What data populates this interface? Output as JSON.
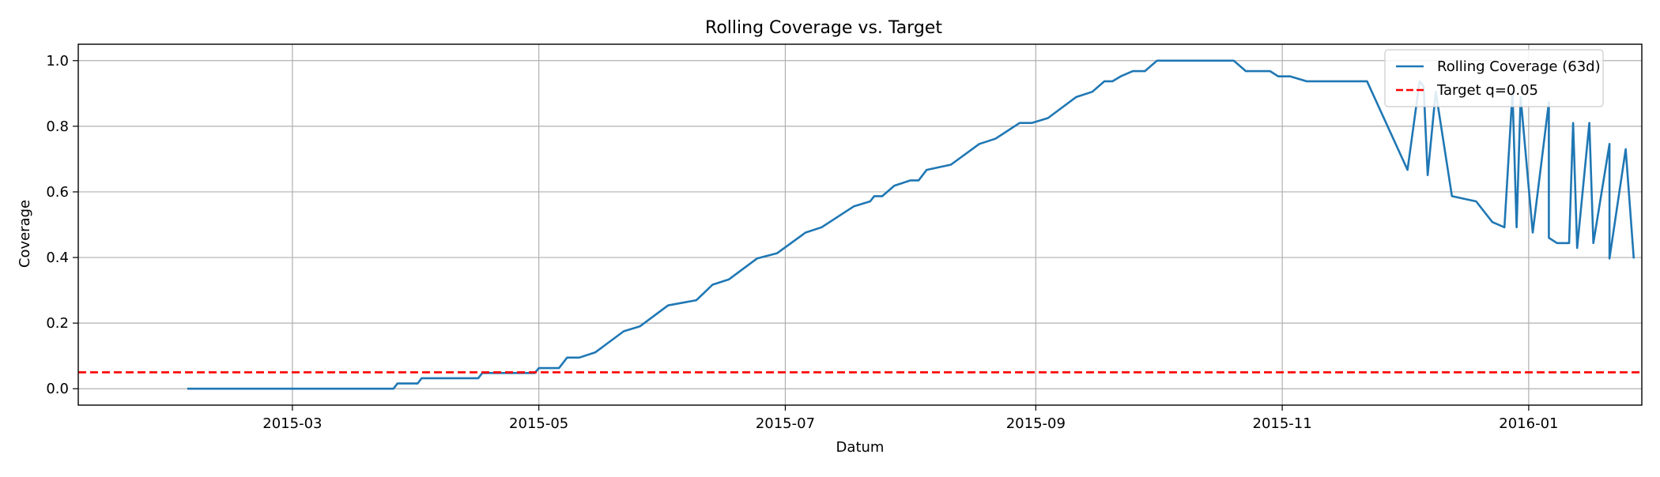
{
  "chart_data": {
    "type": "line",
    "title": "Rolling Coverage vs. Target",
    "xlabel": "Datum",
    "ylabel": "Coverage",
    "xlim": [
      "2015-01-07",
      "2016-01-29"
    ],
    "ylim": [
      -0.05,
      1.05
    ],
    "grid": true,
    "legend_position": "top-right",
    "x_ticks": [
      "2015-03",
      "2015-05",
      "2015-07",
      "2015-09",
      "2015-11",
      "2016-01"
    ],
    "y_ticks": [
      "0.0",
      "0.2",
      "0.4",
      "0.6",
      "0.8",
      "1.0"
    ],
    "series": [
      {
        "name": "Rolling Coverage (63d)",
        "color": "#1f77b4",
        "style": "solid",
        "points": [
          [
            "2015-02-03",
            0.0
          ],
          [
            "2015-03-26",
            0.0
          ],
          [
            "2015-03-27",
            0.016
          ],
          [
            "2015-04-01",
            0.016
          ],
          [
            "2015-04-02",
            0.032
          ],
          [
            "2015-04-16",
            0.032
          ],
          [
            "2015-04-17",
            0.048
          ],
          [
            "2015-04-30",
            0.048
          ],
          [
            "2015-05-01",
            0.063
          ],
          [
            "2015-05-06",
            0.063
          ],
          [
            "2015-05-08",
            0.095
          ],
          [
            "2015-05-11",
            0.095
          ],
          [
            "2015-05-15",
            0.111
          ],
          [
            "2015-05-22",
            0.175
          ],
          [
            "2015-05-26",
            0.19
          ],
          [
            "2015-06-02",
            0.254
          ],
          [
            "2015-06-09",
            0.27
          ],
          [
            "2015-06-13",
            0.317
          ],
          [
            "2015-06-17",
            0.333
          ],
          [
            "2015-06-24",
            0.397
          ],
          [
            "2015-06-29",
            0.413
          ],
          [
            "2015-07-06",
            0.476
          ],
          [
            "2015-07-10",
            0.492
          ],
          [
            "2015-07-18",
            0.556
          ],
          [
            "2015-07-22",
            0.571
          ],
          [
            "2015-07-23",
            0.587
          ],
          [
            "2015-07-25",
            0.587
          ],
          [
            "2015-07-28",
            0.619
          ],
          [
            "2015-08-01",
            0.635
          ],
          [
            "2015-08-03",
            0.635
          ],
          [
            "2015-08-05",
            0.667
          ],
          [
            "2015-08-11",
            0.683
          ],
          [
            "2015-08-18",
            0.746
          ],
          [
            "2015-08-22",
            0.762
          ],
          [
            "2015-08-28",
            0.81
          ],
          [
            "2015-08-31",
            0.81
          ],
          [
            "2015-09-04",
            0.825
          ],
          [
            "2015-09-11",
            0.889
          ],
          [
            "2015-09-15",
            0.905
          ],
          [
            "2015-09-18",
            0.937
          ],
          [
            "2015-09-20",
            0.937
          ],
          [
            "2015-09-22",
            0.952
          ],
          [
            "2015-09-25",
            0.968
          ],
          [
            "2015-09-28",
            0.968
          ],
          [
            "2015-10-01",
            1.0
          ],
          [
            "2015-10-20",
            1.0
          ],
          [
            "2015-10-23",
            0.968
          ],
          [
            "2015-10-29",
            0.968
          ],
          [
            "2015-10-31",
            0.952
          ],
          [
            "2015-11-03",
            0.952
          ],
          [
            "2015-11-07",
            0.937
          ],
          [
            "2015-11-22",
            0.937
          ],
          [
            "2015-12-05",
            0.937
          ],
          [
            "2015-12-06",
            0.921
          ],
          [
            "2015-12-09",
            0.905
          ],
          [
            "2015-12-28",
            0.905
          ],
          [
            "2015-12-30",
            0.889
          ],
          [
            "2016-01-06",
            0.873
          ],
          [
            "2016-01-12",
            0.81
          ],
          [
            "2016-01-16",
            0.81
          ],
          [
            "2016-01-21",
            0.746
          ],
          [
            "2016-01-25",
            0.73
          ],
          [
            "2015-12-02",
            0.667
          ],
          [
            "2015-12-07",
            0.651
          ],
          [
            "2015-12-13",
            0.587
          ],
          [
            "2015-12-19",
            0.571
          ],
          [
            "2015-12-23",
            0.508
          ],
          [
            "2015-12-26",
            0.492
          ],
          [
            "2015-12-29",
            0.492
          ],
          [
            "2016-01-02",
            0.476
          ],
          [
            "2016-01-06",
            0.46
          ],
          [
            "2016-01-08",
            0.444
          ],
          [
            "2016-01-11",
            0.444
          ],
          [
            "2016-01-13",
            0.429
          ],
          [
            "2016-01-17",
            0.444
          ],
          [
            "2016-01-21",
            0.397
          ],
          [
            "2016-01-27",
            0.397
          ]
        ]
      },
      {
        "name": "Target q=0.05",
        "color": "#ff0000",
        "style": "dashed",
        "y": 0.05
      }
    ]
  }
}
